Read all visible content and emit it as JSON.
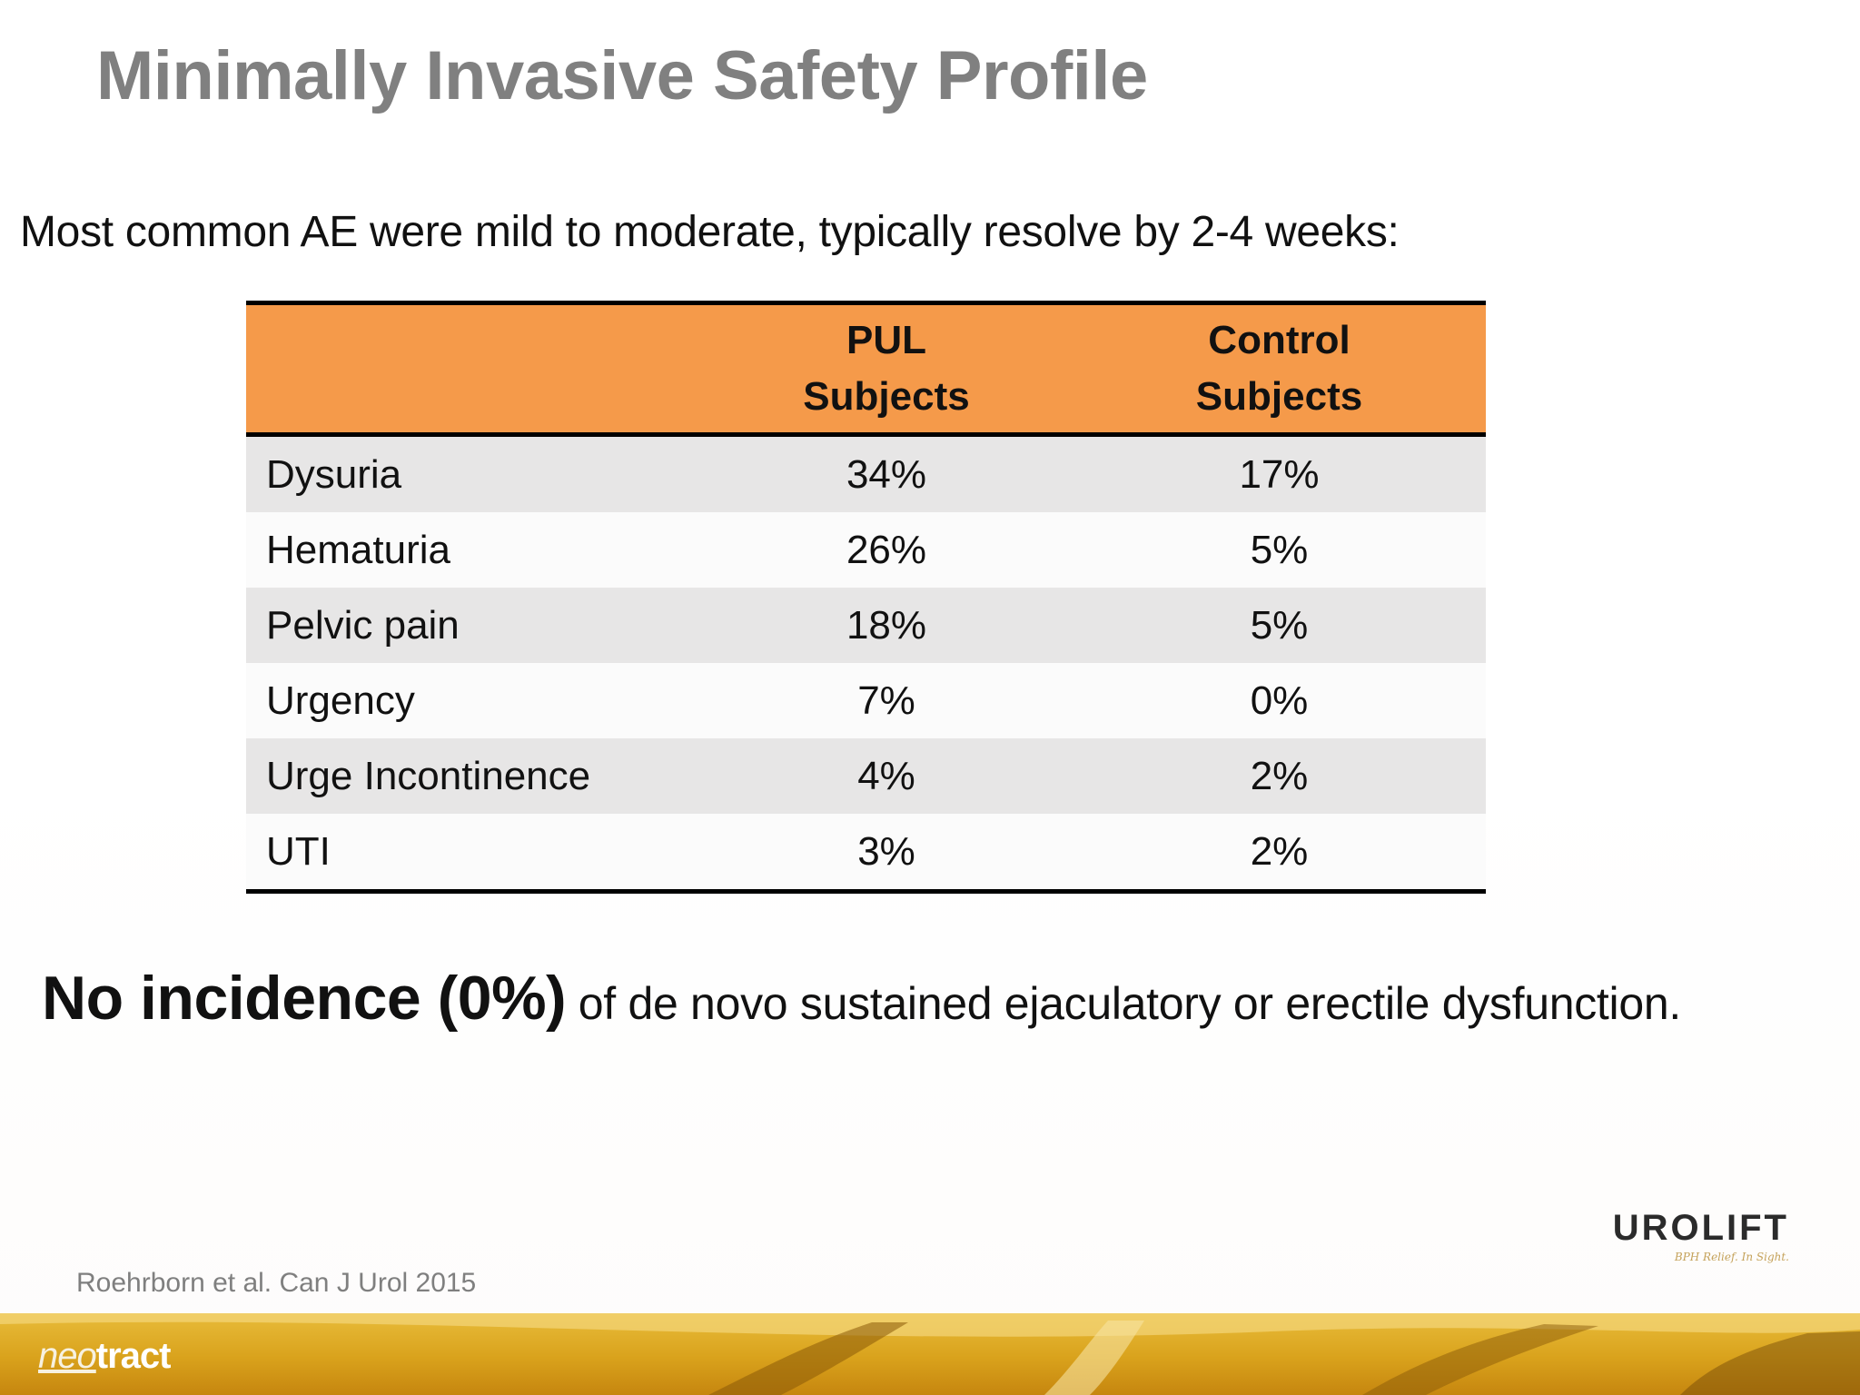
{
  "slide": {
    "title": "Minimally Invasive Safety Profile",
    "subtitle": "Most common AE were mild to moderate, typically resolve by 2-4 weeks:",
    "table": {
      "headers": {
        "label": "",
        "pul_line1": "PUL",
        "pul_line2": "Subjects",
        "control_line1": "Control",
        "control_line2": "Subjects"
      },
      "rows": [
        {
          "label": "Dysuria",
          "pul": "34%",
          "control": "17%"
        },
        {
          "label": "Hematuria",
          "pul": "26%",
          "control": "5%"
        },
        {
          "label": "Pelvic pain",
          "pul": "18%",
          "control": "5%"
        },
        {
          "label": "Urgency",
          "pul": "7%",
          "control": "0%"
        },
        {
          "label": "Urge Incontinence",
          "pul": "4%",
          "control": "2%"
        },
        {
          "label": "UTI",
          "pul": "3%",
          "control": "2%"
        }
      ]
    },
    "statement": {
      "emphasis": "No incidence (0%)",
      "rest": " of de novo sustained ejaculatory or erectile dysfunction."
    },
    "citation": "Roehrborn et al. Can J Urol 2015",
    "logos": {
      "urolift": "UROLIFT",
      "urolift_tagline": "BPH Relief. In Sight.",
      "neotract_neo": "neo",
      "neotract_tract": "tract"
    }
  },
  "colors": {
    "title": "#808080",
    "header_fill": "#f59a4a",
    "row_shade": "#e7e6e6",
    "footer_gold": "#d9a21c"
  }
}
